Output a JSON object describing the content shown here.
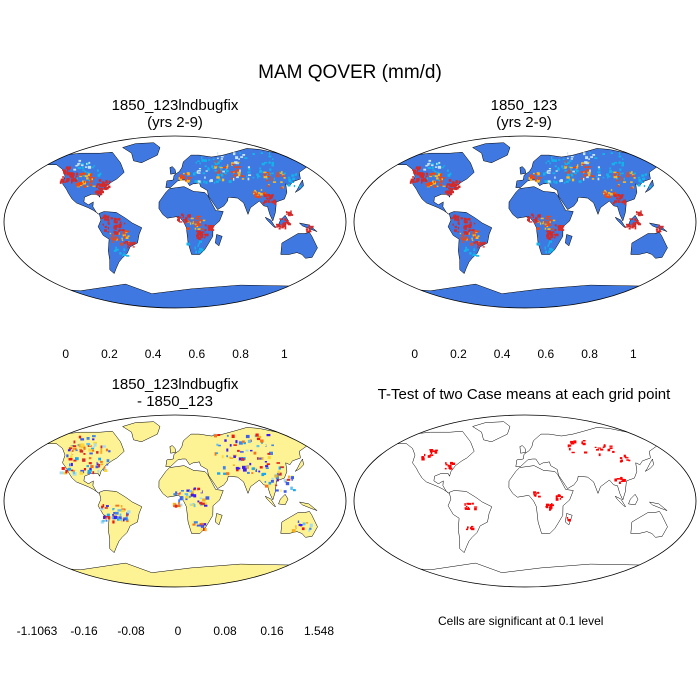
{
  "figure": {
    "title": "MAM QOVER (mm/d)"
  },
  "panels": [
    {
      "title": "1850_123lndbugfix",
      "subtitle": "(yrs 2-9)"
    },
    {
      "title": "1850_123",
      "subtitle": "(yrs 2-9)"
    },
    {
      "title": "1850_123lndbugfix",
      "subtitle": "- 1850_123"
    },
    {
      "title": "T-Test of two Case means at each grid point",
      "subtitle": ""
    }
  ],
  "colorbar_abs": {
    "colors": [
      "#3d1cf0",
      "#3f78e0",
      "#12b4ea",
      "#c6e6f2",
      "#fbb820",
      "#f4450f",
      "#d42a2a"
    ],
    "labels": [
      "0",
      "0.2",
      "0.4",
      "0.6",
      "0.8",
      "1"
    ]
  },
  "colorbar_diff": {
    "colors": [
      "#3d1cf0",
      "#3f5ee8",
      "#3f84e6",
      "#1aa6f0",
      "#62c2ee",
      "#a7dcef",
      "#fdf394",
      "#fbd73c",
      "#f8ae22",
      "#f6731b",
      "#ec1b12",
      "#d42a2a"
    ],
    "labels": [
      "-1.1063",
      "-0.16",
      "-0.08",
      "0",
      "0.08",
      "0.16",
      "1.548"
    ]
  },
  "note": "Cells are significant at 0.1 level",
  "map_colors": {
    "ocean": "#ffffff",
    "land_abs": "#3f78e0",
    "land_diff": "#fdf394",
    "hot_red": "#d42a2a",
    "hot_orange": "#f4450f",
    "hot_yellow": "#fbb820",
    "light_blue": "#12b4ea",
    "pale_blue": "#c6e6f2",
    "sig_red": "#ff0000"
  }
}
